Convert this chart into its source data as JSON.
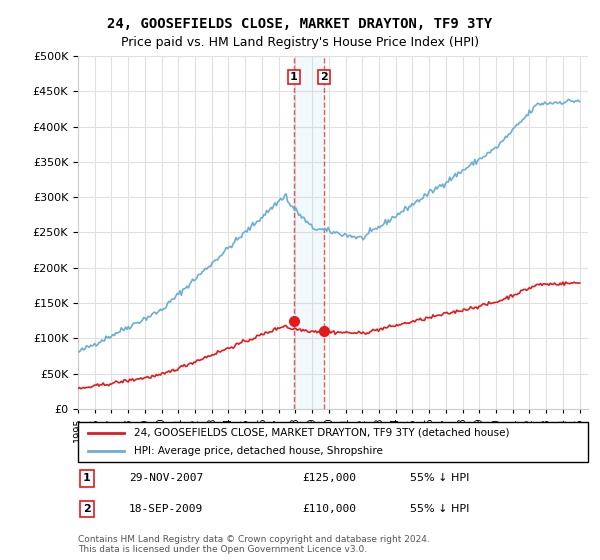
{
  "title": "24, GOOSEFIELDS CLOSE, MARKET DRAYTON, TF9 3TY",
  "subtitle": "Price paid vs. HM Land Registry's House Price Index (HPI)",
  "ylim": [
    0,
    500000
  ],
  "yticks": [
    0,
    50000,
    100000,
    150000,
    200000,
    250000,
    300000,
    350000,
    400000,
    450000,
    500000
  ],
  "x_start_year": 1995,
  "x_end_year": 2025,
  "hpi_color": "#6baed6",
  "price_color": "#e31a1c",
  "transaction1_date": "29-NOV-2007",
  "transaction1_price": 125000,
  "transaction1_hpi": "55% ↓ HPI",
  "transaction2_date": "18-SEP-2009",
  "transaction2_price": 110000,
  "transaction2_hpi": "55% ↓ HPI",
  "legend_label_red": "24, GOOSEFIELDS CLOSE, MARKET DRAYTON, TF9 3TY (detached house)",
  "legend_label_blue": "HPI: Average price, detached house, Shropshire",
  "footnote": "Contains HM Land Registry data © Crown copyright and database right 2024.\nThis data is licensed under the Open Government Licence v3.0.",
  "background_color": "#ffffff",
  "grid_color": "#e0e0e0"
}
